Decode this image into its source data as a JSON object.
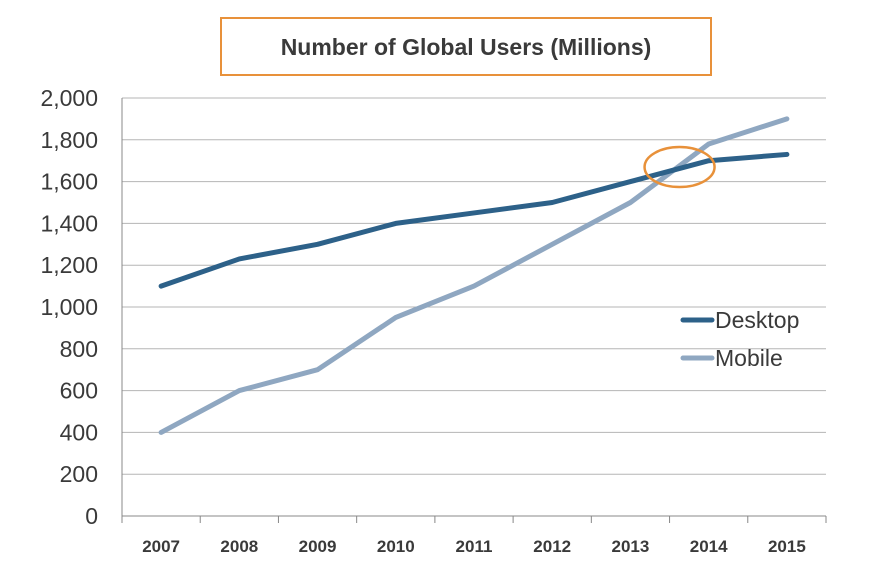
{
  "chart_data": {
    "type": "line",
    "title": "Number of Global Users (Millions)",
    "xlabel": "",
    "ylabel": "",
    "categories": [
      "2007",
      "2008",
      "2009",
      "2010",
      "2011",
      "2012",
      "2013",
      "2014",
      "2015"
    ],
    "ylim": [
      0,
      2000
    ],
    "yticks": [
      0,
      200,
      400,
      600,
      800,
      1000,
      1200,
      1400,
      1600,
      1800,
      2000
    ],
    "ytick_labels": [
      "0",
      "200",
      "400",
      "600",
      "800",
      "1,000",
      "1,200",
      "1,400",
      "1,600",
      "1,800",
      "2,000"
    ],
    "grid": true,
    "legend_position": "right",
    "series": [
      {
        "name": "Desktop",
        "color": "#2d6189",
        "values": [
          1100,
          1230,
          1300,
          1400,
          1450,
          1500,
          1600,
          1700,
          1730
        ]
      },
      {
        "name": "Mobile",
        "color": "#8fa7c1",
        "values": [
          400,
          600,
          700,
          950,
          1100,
          1300,
          1500,
          1780,
          1900
        ]
      }
    ],
    "annotation": {
      "type": "ellipse",
      "color": "#e8913a",
      "x_between": [
        "2013",
        "2014"
      ],
      "y": 1660
    }
  }
}
